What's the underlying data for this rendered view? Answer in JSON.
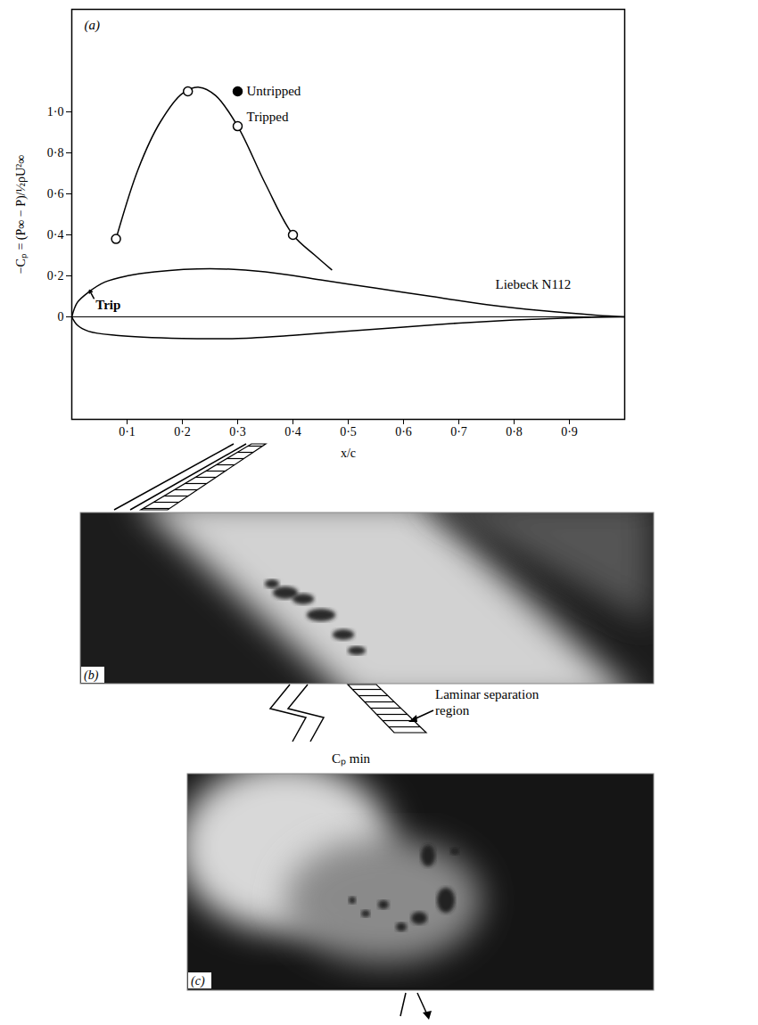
{
  "chart_data": {
    "type": "line",
    "panel_label": "(a)",
    "y_label": "−Cₚ = (P∞ − P)/½ρU²∞",
    "x_label": "x/c",
    "xlim": [
      0,
      1
    ],
    "ylim": [
      -0.5,
      1.5
    ],
    "xticks": [
      {
        "value": 0.1,
        "label": "0·1"
      },
      {
        "value": 0.2,
        "label": "0·2"
      },
      {
        "value": 0.3,
        "label": "0·3"
      },
      {
        "value": 0.4,
        "label": "0·4"
      },
      {
        "value": 0.5,
        "label": "0·5"
      },
      {
        "value": 0.6,
        "label": "0·6"
      },
      {
        "value": 0.7,
        "label": "0·7"
      },
      {
        "value": 0.8,
        "label": "0·8"
      },
      {
        "value": 0.9,
        "label": "0·9"
      }
    ],
    "yticks": [
      0,
      {
        "value": 0.2,
        "label": "0·2"
      },
      {
        "value": 0.4,
        "label": "0·4"
      },
      {
        "value": 0.6,
        "label": "0·6"
      },
      {
        "value": 0.8,
        "label": "0·8"
      },
      {
        "value": 1,
        "label": "1·0"
      }
    ],
    "series": [
      {
        "type": "line",
        "color": "#000000",
        "line_style": "solid",
        "x": [
          0.08,
          0.12,
          0.16,
          0.2,
          0.23,
          0.26,
          0.3,
          0.35,
          0.4,
          0.44,
          0.47
        ],
        "values": [
          0.38,
          0.72,
          0.95,
          1.09,
          1.12,
          1.08,
          0.93,
          0.65,
          0.4,
          0.3,
          0.23
        ]
      },
      {
        "name": "Tripped",
        "type": "scatter",
        "marker": "open circle",
        "color": "#000000",
        "x": [
          0.08,
          0.21,
          0.3,
          0.4
        ],
        "values": [
          0.38,
          1.1,
          0.93,
          0.4
        ]
      },
      {
        "name": "Untripped",
        "type": "scatter",
        "marker": "filled circle",
        "color": "#000000",
        "x": [
          0.3
        ],
        "values": [
          1.1
        ]
      }
    ],
    "airfoil": {
      "name": "Liebeck N112",
      "upper": {
        "x": [
          0,
          0.01,
          0.03,
          0.06,
          0.1,
          0.15,
          0.25,
          0.35,
          0.45,
          0.55,
          0.65,
          0.75,
          0.85,
          0.95,
          1
        ],
        "y": [
          0,
          0.07,
          0.12,
          0.17,
          0.2,
          0.22,
          0.235,
          0.22,
          0.18,
          0.14,
          0.1,
          0.06,
          0.03,
          0.008,
          0
        ]
      },
      "lower": {
        "x": [
          0,
          0.01,
          0.03,
          0.08,
          0.2,
          0.3,
          0.4,
          0.5,
          0.6,
          0.7,
          0.8,
          0.9,
          1
        ],
        "y": [
          0,
          -0.04,
          -0.07,
          -0.09,
          -0.105,
          -0.105,
          -0.09,
          -0.07,
          -0.05,
          -0.03,
          -0.015,
          -0.005,
          0
        ]
      }
    },
    "annotations": [
      {
        "text": "Trip",
        "x": 0.04,
        "y": 0.06
      }
    ],
    "grid": false
  },
  "panel_b": {
    "label": "(b)",
    "annotation": "Laminar separation region"
  },
  "panel_c": {
    "label": "(c)",
    "annotation": "Cₚ min"
  }
}
